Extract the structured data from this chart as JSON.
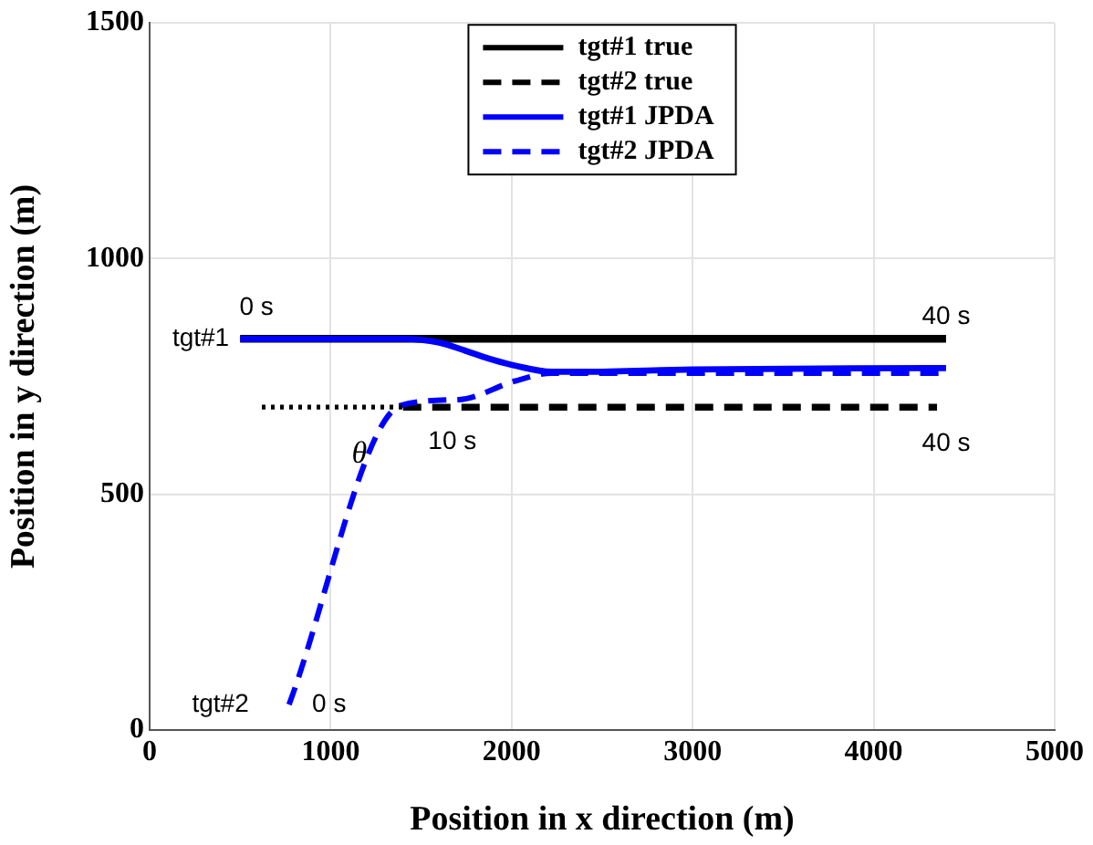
{
  "chart_data": {
    "type": "line",
    "xlabel": "Position in x direction (m)",
    "ylabel": "Position in y direction (m)",
    "xlim": [
      0,
      5000
    ],
    "xticks": [
      0,
      1000,
      2000,
      3000,
      4000,
      5000
    ],
    "ylim": [
      0,
      1500
    ],
    "yticks": [
      0,
      500,
      1000,
      1500
    ],
    "grid": true,
    "legend": "top",
    "marker": "none",
    "series": [
      {
        "name": "tgt#1 true",
        "color": "#000000",
        "line_style": "solid",
        "x": [
          500,
          4400
        ],
        "values": [
          830,
          830
        ]
      },
      {
        "name": "tgt#2 true",
        "color": "#000000",
        "line_style": "dashed",
        "x": [
          1400,
          4350
        ],
        "values": [
          685,
          685
        ]
      },
      {
        "name": "tgt#1 JPDA",
        "color": "#0000ff",
        "line_style": "solid",
        "x": [
          500,
          1400,
          1600,
          1750,
          1900,
          2020,
          2220,
          2400,
          3000,
          4400
        ],
        "values": [
          830,
          830,
          822,
          804,
          785,
          773,
          760,
          760,
          765,
          768
        ]
      },
      {
        "name": "tgt#2 JPDA",
        "color": "#0000ff",
        "line_style": "dashed",
        "x": [
          770,
          1390,
          1710,
          2015,
          2220,
          3000,
          4400
        ],
        "values": [
          54,
          689,
          701,
          740,
          757,
          757,
          757
        ]
      },
      {
        "color": "#000000",
        "line_style": "dotted",
        "x": [
          620,
          1400
        ],
        "values": [
          685,
          685
        ]
      }
    ],
    "annotations": [
      "0 s",
      "40 s",
      "tgt#1",
      "θ",
      "10 s",
      "40 s",
      "tgt#2",
      "0 s"
    ]
  }
}
